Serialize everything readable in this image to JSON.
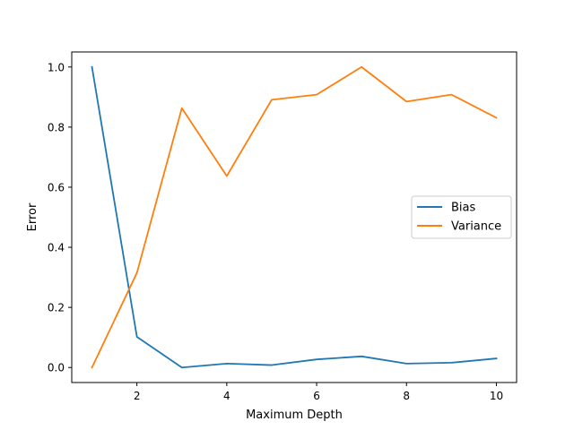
{
  "chart_data": {
    "type": "line",
    "xlabel": "Maximum Depth",
    "ylabel": "Error",
    "xlim": [
      0.55,
      10.45
    ],
    "ylim": [
      -0.05,
      1.05
    ],
    "xticks": [
      2,
      4,
      6,
      8,
      10
    ],
    "yticks": [
      0.0,
      0.2,
      0.4,
      0.6,
      0.8,
      1.0
    ],
    "grid": false,
    "legend_placement": "center-right",
    "x": [
      1,
      2,
      3,
      4,
      5,
      6,
      7,
      8,
      9,
      10
    ],
    "series": [
      {
        "name": "Bias",
        "color": "#1f77b4",
        "values": [
          1.0,
          0.102,
          0.0,
          0.013,
          0.008,
          0.027,
          0.037,
          0.013,
          0.016,
          0.03
        ]
      },
      {
        "name": "Variance",
        "color": "#ff7f0e",
        "values": [
          0.0,
          0.315,
          0.863,
          0.637,
          0.891,
          0.908,
          1.0,
          0.885,
          0.908,
          0.831
        ]
      }
    ]
  }
}
